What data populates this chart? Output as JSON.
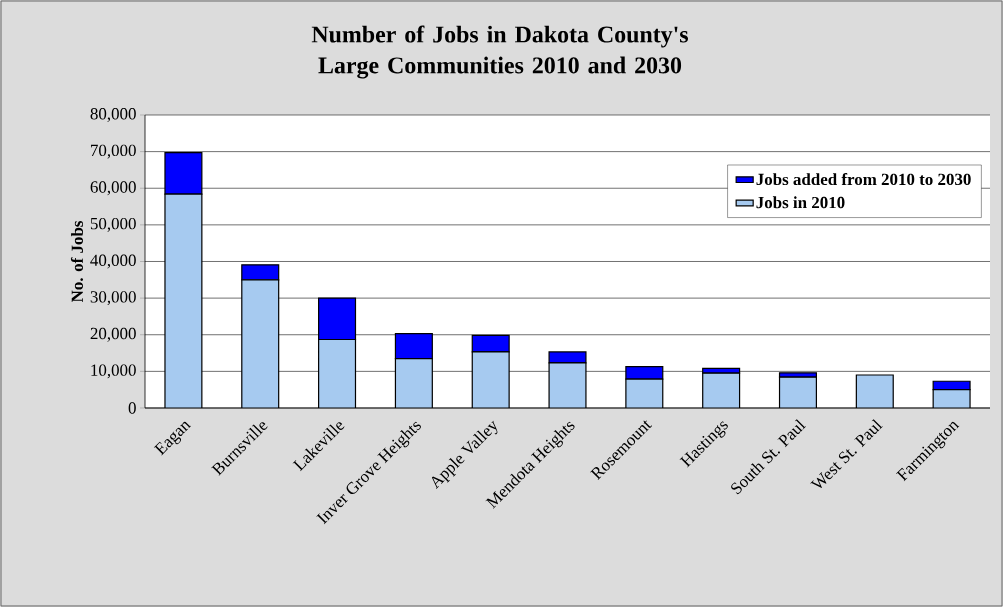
{
  "chart_data": {
    "type": "bar",
    "stacked": true,
    "title": "Number of Jobs in Dakota County's Large Communities 2010 and 2030",
    "ylabel": "No. of Jobs",
    "categories": [
      "Eagan",
      "Burnsville",
      "Lakeville",
      "Inver Grove Heights",
      "Apple Valley",
      "Mendota Heights",
      "Rosemount",
      "Hastings",
      "South St. Paul",
      "West St. Paul",
      "Farmington"
    ],
    "series": [
      {
        "name": "Jobs in 2010",
        "color": "#a6caf0",
        "values": [
          58400,
          35000,
          18700,
          13500,
          15300,
          12300,
          7900,
          9500,
          8400,
          9000,
          5000
        ]
      },
      {
        "name": "Jobs added from 2010 to 2030",
        "color": "#0000ff",
        "values": [
          11300,
          4100,
          11300,
          6800,
          4500,
          3000,
          3400,
          1300,
          1200,
          0,
          2300
        ]
      }
    ],
    "ylim": [
      0,
      80000
    ],
    "yticks": [
      {
        "value": 0,
        "label": "0"
      },
      {
        "value": 10000,
        "label": "10,000"
      },
      {
        "value": 20000,
        "label": "20,000"
      },
      {
        "value": 30000,
        "label": "30,000"
      },
      {
        "value": 40000,
        "label": "40,000"
      },
      {
        "value": 50000,
        "label": "50,000"
      },
      {
        "value": 60000,
        "label": "60,000"
      },
      {
        "value": 70000,
        "label": "70,000"
      },
      {
        "value": 80000,
        "label": "80,000"
      }
    ],
    "grid": "y",
    "legend": "top right"
  }
}
